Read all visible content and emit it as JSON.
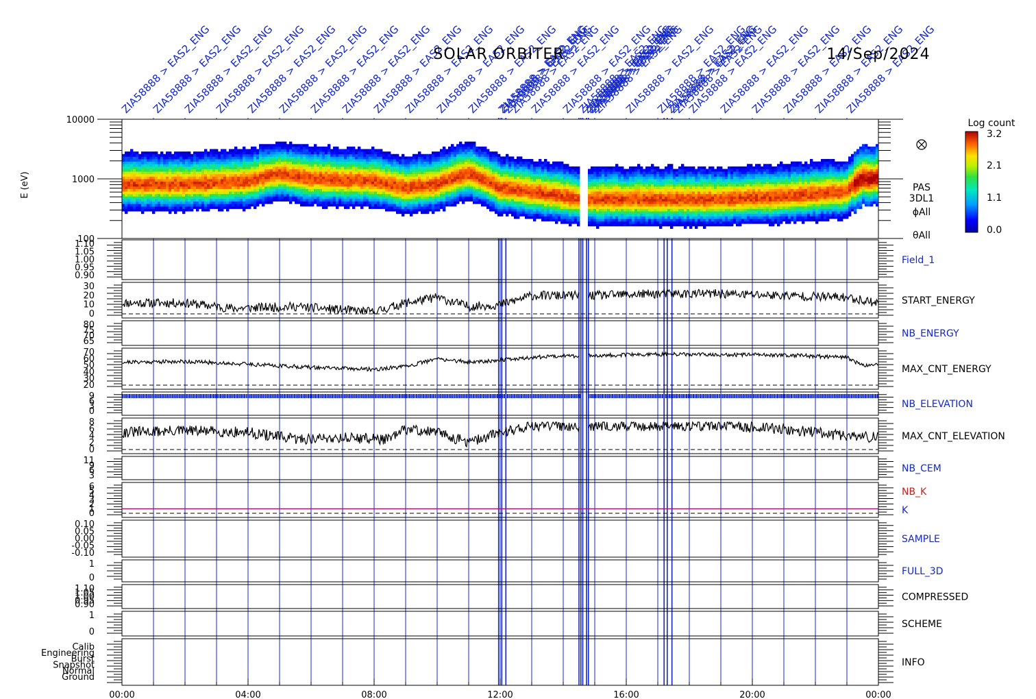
{
  "header": {
    "mission": "SOLAR ORBITER",
    "date": "14/Sep/2024"
  },
  "event_labels": {
    "text": "ZIA58888 > EAS2_ENG",
    "count": 24
  },
  "colorbar": {
    "title": "Log count",
    "ticks": [
      "3.2",
      "2.1",
      "1.1",
      "0.0"
    ]
  },
  "spectrogram": {
    "ylabel": "E (eV)",
    "ticks": [
      "10000",
      "1000",
      "100"
    ],
    "side_labels": [
      "PAS",
      "3DL1",
      "ϕAll",
      "θAll"
    ],
    "symbol_icon": "circle-cross-icon"
  },
  "time_axis": {
    "ticks": [
      "00:00",
      "04:00",
      "08:00",
      "12:00",
      "16:00",
      "20:00",
      "00:00"
    ]
  },
  "panels": [
    {
      "name": "Field_1",
      "color": "#1428c8",
      "ticks": [
        "1.10",
        "1.05",
        "1.00",
        "0.95",
        "0.90"
      ]
    },
    {
      "name": "START_ENERGY",
      "color": "#000000",
      "ticks": [
        "30",
        "20",
        "10",
        "0"
      ]
    },
    {
      "name": "NB_ENERGY",
      "color": "#1428c8",
      "ticks": [
        "80",
        "75",
        "70",
        "65"
      ]
    },
    {
      "name": "MAX_CNT_ENERGY",
      "color": "#000000",
      "ticks": [
        "70",
        "60",
        "50",
        "40",
        "30",
        "20"
      ]
    },
    {
      "name": "NB_ELEVATION",
      "color": "#1428c8",
      "ticks": [
        "9",
        "6",
        "3",
        "0"
      ]
    },
    {
      "name": "MAX_CNT_ELEVATION",
      "color": "#000000",
      "ticks": [
        "8",
        "6",
        "4",
        "2",
        "0"
      ]
    },
    {
      "name": "NB_CEM",
      "color": "#1428c8",
      "ticks": [
        "11",
        "9",
        "6",
        "3"
      ]
    },
    {
      "name": "NB_K",
      "color": "#c81e1e",
      "second_name": "K",
      "second_color": "#1428c8",
      "ticks": [
        "6",
        "5",
        "4",
        "3",
        "2",
        "1",
        "0"
      ]
    },
    {
      "name": "SAMPLE",
      "color": "#1428c8",
      "ticks": [
        "0.10",
        "0.05",
        "0.00",
        "-0.05",
        "-0.10"
      ]
    },
    {
      "name": "FULL_3D",
      "color": "#1428c8",
      "ticks": [
        "1",
        "0"
      ]
    },
    {
      "name": "COMPRESSED",
      "color": "#000000",
      "ticks": [
        "1.10",
        "1.05",
        "1.00",
        "0.95",
        "0.90"
      ]
    },
    {
      "name": "SCHEME",
      "color": "#000000",
      "ticks": [
        "1",
        "0"
      ]
    },
    {
      "name": "INFO",
      "color": "#000000",
      "ticks": [
        "Calib",
        "Engineering",
        "Burst",
        "Snapshot",
        "Normal",
        "Ground"
      ]
    }
  ],
  "chart_data": [
    {
      "type": "heatmap",
      "ylabel": "E (eV)",
      "yscale": "log",
      "ylim": [
        100,
        10000
      ],
      "xlim_hours": [
        0,
        24
      ],
      "colorbar_range": [
        0.0,
        3.2
      ],
      "ridge_energy_eV": {
        "hours": [
          0,
          2,
          4,
          5,
          6,
          8,
          9,
          10,
          11,
          12,
          13,
          14,
          14.5,
          15,
          17,
          19,
          21,
          23,
          23.5,
          24
        ],
        "values": [
          800,
          800,
          900,
          1200,
          1000,
          900,
          700,
          800,
          1200,
          700,
          600,
          500,
          450,
          450,
          450,
          450,
          500,
          600,
          1000,
          1000
        ]
      },
      "data_gaps_hours": [
        [
          14.5,
          14.8
        ]
      ]
    },
    {
      "type": "line",
      "name": "START_ENERGY",
      "ylim": [
        0,
        30
      ],
      "x_hours": [
        0,
        2,
        3.5,
        5.5,
        8,
        9,
        10,
        11,
        12,
        13,
        14,
        14.5,
        15,
        17,
        19,
        21,
        23,
        24
      ],
      "values": [
        12,
        12,
        6,
        8,
        2,
        12,
        18,
        8,
        10,
        20,
        20,
        20,
        20,
        22,
        22,
        20,
        18,
        12
      ]
    },
    {
      "type": "line",
      "name": "MAX_CNT_ENERGY",
      "ylim": [
        20,
        70
      ],
      "x_hours": [
        0,
        2,
        4,
        6,
        8,
        9,
        10,
        11,
        12,
        13,
        14,
        14.5,
        15,
        17,
        19,
        21,
        23,
        23.5,
        24
      ],
      "values": [
        55,
        56,
        52,
        47,
        44,
        48,
        60,
        55,
        58,
        62,
        65,
        64,
        65,
        67,
        66,
        66,
        62,
        50,
        52
      ]
    },
    {
      "type": "line",
      "name": "MAX_CNT_ELEVATION",
      "ylim": [
        0,
        8
      ],
      "x_hours": [
        0,
        2,
        4,
        5.5,
        7,
        8.5,
        9,
        10,
        11,
        12,
        13,
        14,
        14.5,
        15,
        17,
        19,
        21,
        23,
        24
      ],
      "values": [
        5,
        5.5,
        5,
        3,
        3.5,
        3,
        6,
        5,
        2,
        5,
        7,
        7,
        7,
        7,
        7,
        7,
        6,
        4,
        3.5
      ]
    },
    {
      "type": "line",
      "name": "NB_K",
      "ylim": [
        0,
        6
      ],
      "x_hours": [
        0,
        24
      ],
      "values": [
        1,
        1
      ]
    }
  ]
}
